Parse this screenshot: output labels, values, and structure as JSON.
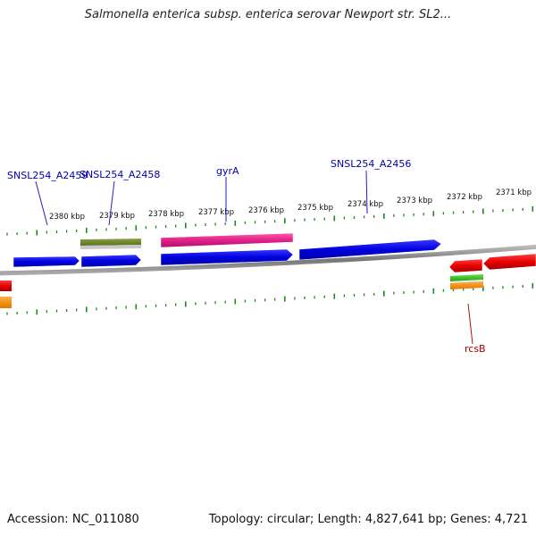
{
  "title": "Salmonella enterica subsp. enterica serovar Newport str. SL2...",
  "accession": "Accession: NC_011080",
  "summary": "Topology: circular; Length: 4,827,641 bp; Genes: 4,721",
  "ruler_unit": "kbp",
  "ruler_labels": [
    "2380 kbp",
    "2379 kbp",
    "2378 kbp",
    "2377 kbp",
    "2376 kbp",
    "2375 kbp",
    "2374 kbp",
    "2373 kbp",
    "2372 kbp",
    "2371 kbp"
  ],
  "gene_labels": [
    {
      "name": "SNSL254_A2459",
      "color": "#0000aa"
    },
    {
      "name": "SNSL254_A2458",
      "color": "#0000aa"
    },
    {
      "name": "gyrA",
      "color": "#0000aa"
    },
    {
      "name": "SNSL254_A2456",
      "color": "#0000aa"
    },
    {
      "name": "rcsB",
      "color": "#aa0000"
    }
  ],
  "colors": {
    "forward_strand": "#0a0ae6",
    "reverse_strand": "#e60a0a",
    "highlight": "#e8208a",
    "tick": "#1a8a1a",
    "backbone": "#888888"
  }
}
